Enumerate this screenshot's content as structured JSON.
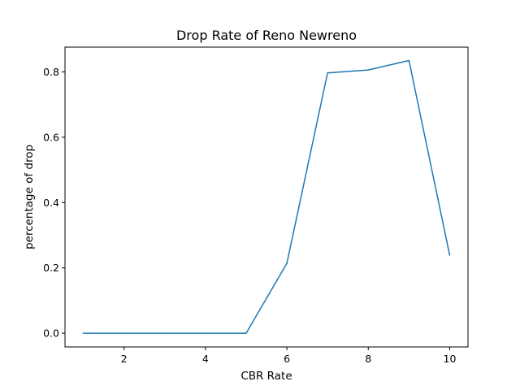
{
  "chart_data": {
    "type": "line",
    "title": "Drop Rate of Reno Newreno",
    "xlabel": "CBR Rate",
    "ylabel": "percentage of drop",
    "x": [
      1,
      2,
      3,
      4,
      5,
      6,
      7,
      8,
      9,
      10
    ],
    "series": [
      {
        "values": [
          0.0,
          0.0,
          0.0,
          0.0,
          0.0,
          0.214,
          0.797,
          0.806,
          0.835,
          0.239
        ],
        "color": "#1f77b4"
      }
    ],
    "xlim": [
      0.55,
      10.45
    ],
    "ylim": [
      -0.042,
      0.876
    ],
    "xticks": [
      2,
      4,
      6,
      8,
      10
    ],
    "xtick_labels": [
      "2",
      "4",
      "6",
      "8",
      "10"
    ],
    "yticks": [
      0.0,
      0.2,
      0.4,
      0.6,
      0.8
    ],
    "ytick_labels": [
      "0.0",
      "0.2",
      "0.4",
      "0.6",
      "0.8"
    ],
    "grid": false,
    "legend": "none"
  }
}
